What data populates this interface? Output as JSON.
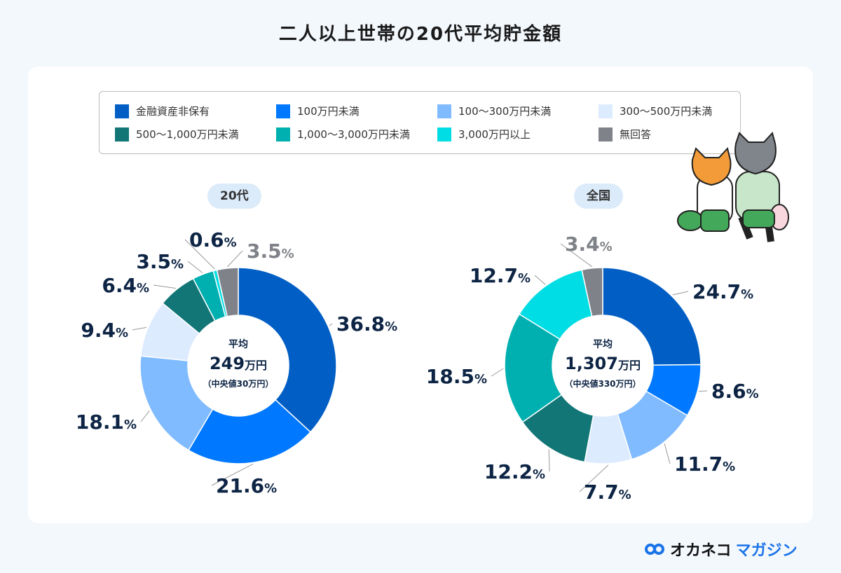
{
  "title": "二人以上世帯の20代平均貯金額",
  "legend": [
    {
      "label": "金融資産非保有",
      "color": "#005EC4"
    },
    {
      "label": "100万円未満",
      "color": "#0078FF"
    },
    {
      "label": "100〜300万円未満",
      "color": "#80BBFF"
    },
    {
      "label": "300〜500万円未満",
      "color": "#DDEBFF"
    },
    {
      "label": "500〜1,000万円未満",
      "color": "#127676"
    },
    {
      "label": "1,000〜3,000万円未満",
      "color": "#00B0B0"
    },
    {
      "label": "3,000万円以上",
      "color": "#00DDE4"
    },
    {
      "label": "無回答",
      "color": "#7F8288"
    }
  ],
  "chart_data": [
    {
      "type": "pie",
      "title": "20代",
      "center": {
        "label": "平均",
        "value": "249",
        "unit": "万円",
        "median": "（中央値30万円）"
      },
      "values": [
        36.8,
        21.6,
        18.1,
        9.4,
        6.4,
        3.5,
        0.6,
        3.5
      ]
    },
    {
      "type": "pie",
      "title": "全国",
      "center": {
        "label": "平均",
        "value": "1,307",
        "unit": "万円",
        "median": "（中央値330万円）"
      },
      "values": [
        24.7,
        8.6,
        11.7,
        7.7,
        12.2,
        18.5,
        12.7,
        3.4
      ]
    }
  ],
  "logo": {
    "part1": "オカネコ",
    "part2": "マガジン"
  }
}
